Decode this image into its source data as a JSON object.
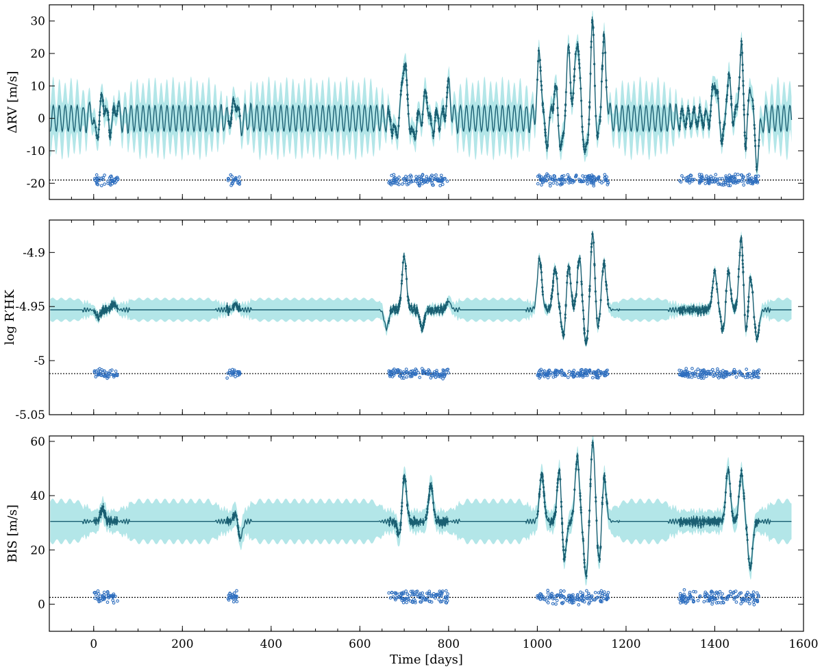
{
  "chart_data": {
    "type": "line",
    "shared_x": {
      "xlabel": "Time [days]",
      "xlim": [
        -100,
        1600
      ],
      "xticks": [
        0,
        200,
        400,
        600,
        800,
        1000,
        1200,
        1400,
        1600
      ],
      "xtick_labels": [
        "0",
        "200",
        "400",
        "600",
        "800",
        "1000",
        "1200",
        "1400",
        "1600"
      ]
    },
    "observation_windows": [
      [
        0,
        55
      ],
      [
        300,
        330
      ],
      [
        665,
        800
      ],
      [
        1000,
        1160
      ],
      [
        1320,
        1500
      ]
    ],
    "panels": [
      {
        "id": "rv",
        "ylabel": "ΔRV [m/s]",
        "ylim": [
          -25,
          35
        ],
        "yticks": [
          -20,
          -10,
          0,
          10,
          20,
          30
        ],
        "ytick_labels": [
          "-20",
          "-10",
          "0",
          "10",
          "20",
          "30"
        ],
        "model_mean": 0,
        "quiet_amplitude": 4,
        "quiet_band_halfwidth": 8,
        "period_days": 13.5,
        "active_band_halfwidth": 3.5,
        "peaks": [
          [
            -2,
            4
          ],
          [
            20,
            6
          ],
          [
            50,
            4
          ],
          [
            320,
            6
          ],
          [
            700,
            18
          ],
          [
            750,
            8
          ],
          [
            800,
            9
          ],
          [
            1005,
            19
          ],
          [
            1040,
            9
          ],
          [
            1070,
            20
          ],
          [
            1090,
            25
          ],
          [
            1125,
            29
          ],
          [
            1150,
            23
          ],
          [
            1400,
            12
          ],
          [
            1430,
            14
          ],
          [
            1460,
            22
          ],
          [
            1480,
            12
          ]
        ],
        "troughs": [
          [
            5,
            -7
          ],
          [
            40,
            -3
          ],
          [
            330,
            -2
          ],
          [
            680,
            -5
          ],
          [
            720,
            -6
          ],
          [
            760,
            -4
          ],
          [
            1020,
            -7
          ],
          [
            1055,
            -10
          ],
          [
            1110,
            -12
          ],
          [
            1135,
            -10
          ],
          [
            1420,
            -8
          ],
          [
            1470,
            -11
          ],
          [
            1495,
            -13
          ]
        ],
        "residual_level": -19,
        "residual_spread": 1.5
      },
      {
        "id": "logrhk",
        "ylabel": "log R′HK",
        "ylim": [
          -5.05,
          -4.87
        ],
        "yticks": [
          -5.05,
          -5.0,
          -4.95,
          -4.9
        ],
        "ytick_labels": [
          "-5.05",
          "-5",
          "-4.95",
          "-4.9"
        ],
        "model_mean": -4.953,
        "quiet_amplitude": 0,
        "quiet_band_halfwidth": 0.01,
        "period_days": 13.5,
        "active_band_halfwidth": 0.005,
        "peaks": [
          [
            45,
            -4.947
          ],
          [
            320,
            -4.948
          ],
          [
            700,
            -4.904
          ],
          [
            800,
            -4.945
          ],
          [
            1005,
            -4.905
          ],
          [
            1040,
            -4.915
          ],
          [
            1070,
            -4.91
          ],
          [
            1095,
            -4.905
          ],
          [
            1125,
            -4.88
          ],
          [
            1150,
            -4.91
          ],
          [
            1400,
            -4.918
          ],
          [
            1430,
            -4.915
          ],
          [
            1460,
            -4.883
          ],
          [
            1480,
            -4.92
          ]
        ],
        "troughs": [
          [
            10,
            -4.96
          ],
          [
            660,
            -4.97
          ],
          [
            740,
            -4.97
          ],
          [
            1060,
            -4.98
          ],
          [
            1110,
            -4.985
          ],
          [
            1135,
            -4.975
          ],
          [
            1420,
            -4.975
          ],
          [
            1470,
            -4.985
          ],
          [
            1495,
            -4.98
          ]
        ],
        "residual_level": -5.012,
        "residual_spread": 0.004
      },
      {
        "id": "bis",
        "ylabel": "BIS [m/s]",
        "ylim": [
          -10,
          62
        ],
        "yticks": [
          0,
          20,
          40,
          60
        ],
        "ytick_labels": [
          "0",
          "20",
          "40",
          "60"
        ],
        "model_mean": 30.5,
        "quiet_amplitude": 0,
        "quiet_band_halfwidth": 7.5,
        "period_days": 13.5,
        "active_band_halfwidth": 4,
        "peaks": [
          [
            20,
            35
          ],
          [
            320,
            34
          ],
          [
            700,
            48
          ],
          [
            760,
            44
          ],
          [
            1010,
            48
          ],
          [
            1050,
            51
          ],
          [
            1090,
            54
          ],
          [
            1125,
            60
          ],
          [
            1150,
            48
          ],
          [
            1430,
            50
          ],
          [
            1460,
            48
          ]
        ],
        "troughs": [
          [
            330,
            24
          ],
          [
            690,
            24
          ],
          [
            1060,
            15
          ],
          [
            1110,
            10
          ],
          [
            1140,
            14
          ],
          [
            1480,
            13
          ]
        ],
        "residual_level": 2.5,
        "residual_spread": 2.2
      }
    ]
  }
}
